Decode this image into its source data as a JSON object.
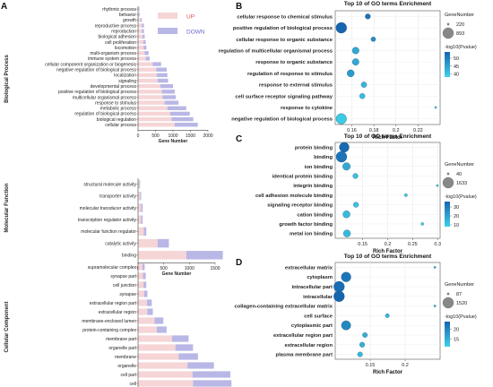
{
  "panel_letters": [
    "A",
    "B",
    "C",
    "D"
  ],
  "legend_a": {
    "up": "UP",
    "down": "DOWN",
    "up_color": "#f6d5d6",
    "down_color": "#b8b7e6"
  },
  "section_labels": [
    "Biological Process",
    "Molecular Function",
    "Cellular Component"
  ],
  "colors": {
    "dot_dark": "#1565b0",
    "dot_light": "#3fd1e8",
    "dot_outline": "#7a7a7a",
    "dot_legend": "#888888"
  },
  "chart_data": [
    {
      "type": "bar",
      "stacked": true,
      "orientation": "horizontal",
      "section": "Biological Process",
      "xlabel": "Gene Number",
      "xlim": [
        0,
        2000
      ],
      "xticks": [
        0,
        500,
        1000,
        1500,
        2000
      ],
      "categories": [
        "rhythmic process",
        "behavior",
        "growth",
        "reproductive process",
        "reproduction",
        "biological adhesion",
        "cell proliferation",
        "locomotion",
        "multi-organism process",
        "immune system process",
        "cellular component organization or biogenesis",
        "negative regulation of biological process",
        "localization",
        "signaling",
        "developmental process",
        "positive regulation of biological process",
        "multicellular organismal process",
        "response to stimulus",
        "metabolic process",
        "regulation of biological process",
        "biological regulation",
        "cellular process"
      ],
      "series": [
        {
          "name": "UP",
          "values": [
            20,
            30,
            70,
            110,
            110,
            130,
            150,
            160,
            190,
            220,
            420,
            520,
            540,
            560,
            640,
            680,
            700,
            760,
            840,
            920,
            960,
            1050
          ]
        },
        {
          "name": "DOWN",
          "values": [
            20,
            20,
            40,
            60,
            60,
            60,
            70,
            80,
            110,
            110,
            240,
            300,
            300,
            300,
            360,
            370,
            380,
            400,
            540,
            560,
            620,
            660
          ]
        }
      ]
    },
    {
      "type": "bar",
      "stacked": true,
      "orientation": "horizontal",
      "section": "Molecular Function",
      "xlabel": "Gene Number",
      "xlim": [
        0,
        1500
      ],
      "xticks": [
        0,
        500,
        1000,
        1500
      ],
      "categories": [
        "structural molecule activity",
        "transporter activity",
        "molecular transducer activity",
        "transcription regulator activity",
        "molecular function regulator",
        "catalytic activity",
        "binding"
      ],
      "series": [
        {
          "name": "UP",
          "values": [
            25,
            40,
            60,
            60,
            110,
            380,
            940
          ]
        },
        {
          "name": "DOWN",
          "values": [
            15,
            20,
            30,
            30,
            50,
            220,
            710
          ]
        }
      ]
    },
    {
      "type": "bar",
      "stacked": true,
      "orientation": "horizontal",
      "section": "Cellular Component",
      "xlabel": "Gene Number",
      "xlim": [
        0,
        1500
      ],
      "xticks": [
        0,
        500,
        1000,
        1500
      ],
      "categories": [
        "supramolecular complex",
        "synapse part",
        "cell junction",
        "synapse",
        "extracellular region part",
        "extracellular region",
        "membrane-enclosed lumen",
        "protein-containing complex",
        "membrane part",
        "organelle part",
        "membrane",
        "organelle",
        "cell part",
        "cell"
      ],
      "series": [
        {
          "name": "UP",
          "values": [
            80,
            90,
            100,
            110,
            160,
            170,
            300,
            340,
            620,
            680,
            740,
            900,
            990,
            1000
          ]
        },
        {
          "name": "DOWN",
          "values": [
            40,
            50,
            50,
            60,
            90,
            100,
            160,
            180,
            300,
            320,
            350,
            480,
            690,
            700
          ]
        }
      ]
    },
    {
      "type": "scatter",
      "panel": "B",
      "title": "Top 10 of GO terms Enrichment",
      "xlabel": "Rich Factor",
      "xlim": [
        0.145,
        0.24
      ],
      "xticks": [
        0.16,
        0.18,
        0.2,
        0.22
      ],
      "size_legend": {
        "title": "GeneNumber",
        "labels": [
          "220",
          "893"
        ],
        "values": [
          220,
          893
        ]
      },
      "color_legend": {
        "title": "-log10(Pvalue)",
        "ticks": [
          50,
          45,
          40
        ],
        "range": [
          38,
          54
        ]
      },
      "categories": [
        "cellular response to chemical stimulus",
        "positive regulation of biological process",
        "cellular response to organic substance",
        "regulation of multicellular organismal process",
        "response to organic substance",
        "regulation of response to stimulus",
        "response to external stimulus",
        "cell surface receptor signaling pathway",
        "response to cytokine",
        "negative regulation of biological process"
      ],
      "x": [
        0.1745,
        0.1505,
        0.1795,
        0.1635,
        0.1635,
        0.159,
        0.171,
        0.1695,
        0.236,
        0.1505
      ],
      "gene_number": [
        310,
        893,
        280,
        420,
        410,
        450,
        330,
        320,
        220,
        860
      ],
      "neg_log10_p": [
        52,
        54,
        48,
        44,
        44,
        46,
        42,
        41,
        38,
        39
      ]
    },
    {
      "type": "scatter",
      "panel": "C",
      "title": "Top 10 of GO terms Enrichment",
      "xlabel": "Rich Factor",
      "xlim": [
        0.095,
        0.305
      ],
      "xticks": [
        0.15,
        0.2,
        0.25,
        0.3
      ],
      "size_legend": {
        "title": "GeneNumber",
        "labels": [
          "40",
          "1633"
        ],
        "values": [
          40,
          1633
        ]
      },
      "color_legend": {
        "title": "-log10(Pvalue)",
        "ticks": [
          30,
          20,
          10
        ],
        "range": [
          8,
          36
        ]
      },
      "categories": [
        "protein binding",
        "binding",
        "ion binding",
        "identical protein binding",
        "integrin binding",
        "cell adhesion molecule binding",
        "signaling receptor binding",
        "cation binding",
        "growth factor binding",
        "metal ion binding"
      ],
      "x": [
        0.113,
        0.1075,
        0.1175,
        0.1355,
        0.2995,
        0.2365,
        0.1365,
        0.1175,
        0.2695,
        0.1185
      ],
      "gene_number": [
        1300,
        1633,
        700,
        240,
        40,
        60,
        250,
        600,
        50,
        590
      ],
      "neg_log10_p": [
        35,
        32,
        18,
        12,
        9,
        9,
        12,
        14,
        9,
        14
      ]
    },
    {
      "type": "scatter",
      "panel": "D",
      "title": "Top 10 of GO terms Enrichment",
      "xlabel": "Rich Factor",
      "xlim": [
        0.1,
        0.25
      ],
      "xticks": [
        0.15,
        0.2
      ],
      "size_legend": {
        "title": "GeneNumber",
        "labels": [
          "87",
          "1520"
        ],
        "values": [
          87,
          1520
        ]
      },
      "color_legend": {
        "title": "-log10(Pvalue)",
        "ticks": [
          20,
          15
        ],
        "range": [
          11,
          24
        ]
      },
      "categories": [
        "extracellular matrix",
        "cytoplasm",
        "intracellular part",
        "intracellular",
        "collagen-containing extracellular matrix",
        "cell surface",
        "cytoplasmic part",
        "extracellular region part",
        "extracellular region",
        "plasma membrane part"
      ],
      "x": [
        0.2425,
        0.1155,
        0.1055,
        0.1055,
        0.2425,
        0.1745,
        0.1155,
        0.1425,
        0.1385,
        0.1355
      ],
      "gene_number": [
        87,
        1200,
        1500,
        1520,
        87,
        160,
        1100,
        240,
        260,
        250
      ],
      "neg_log10_p": [
        14,
        22,
        23,
        24,
        14,
        14,
        20,
        15,
        15,
        14
      ]
    }
  ]
}
